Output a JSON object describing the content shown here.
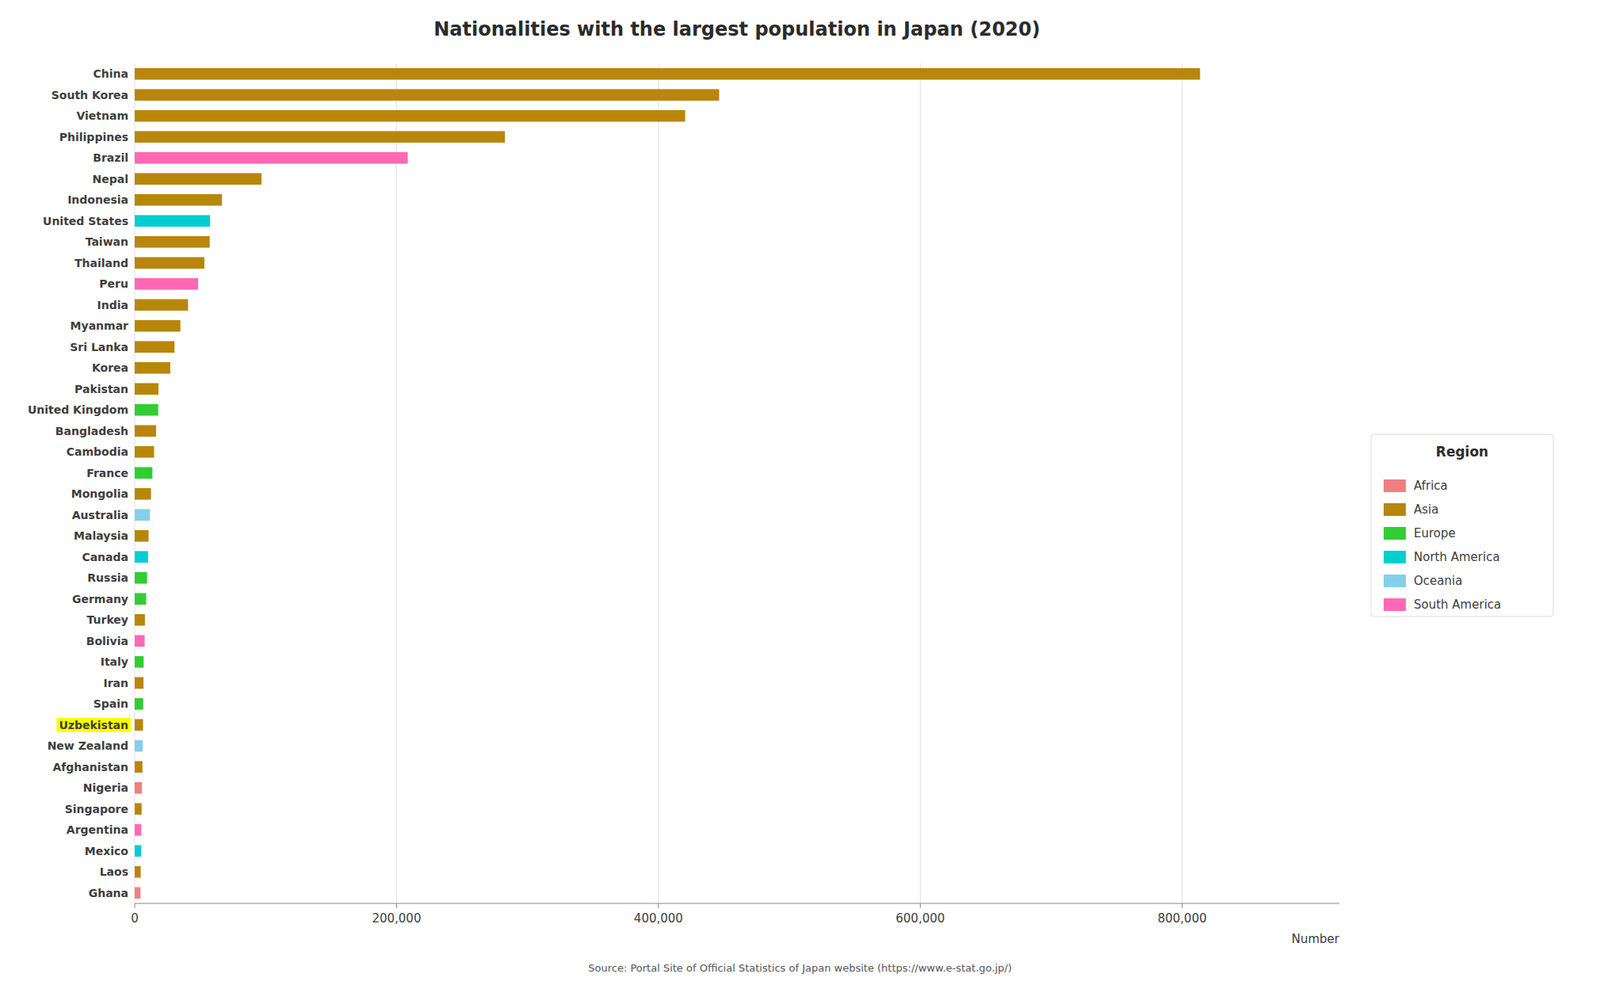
{
  "chart_data": {
    "type": "bar",
    "orientation": "horizontal",
    "title": "Nationalities with the largest population in Japan (2020)",
    "xlabel": "Number",
    "annotation": "Source: Portal Site of Official Statistics of Japan website (https://www.e-stat.go.jp/)",
    "categories": [
      "China",
      "South Korea",
      "Vietnam",
      "Philippines",
      "Brazil",
      "Nepal",
      "Indonesia",
      "United States",
      "Taiwan",
      "Thailand",
      "Peru",
      "India",
      "Myanmar",
      "Sri Lanka",
      "Korea",
      "Pakistan",
      "United Kingdom",
      "Bangladesh",
      "Cambodia",
      "France",
      "Mongolia",
      "Australia",
      "Malaysia",
      "Canada",
      "Russia",
      "Germany",
      "Turkey",
      "Bolivia",
      "Italy",
      "Iran",
      "Spain",
      "Uzbekistan",
      "New Zealand",
      "Afghanistan",
      "Nigeria",
      "Singapore",
      "Argentina",
      "Mexico",
      "Laos",
      "Ghana"
    ],
    "series": [
      {
        "name": "Africa",
        "color": "#F08080",
        "values": [
          null,
          null,
          null,
          null,
          null,
          null,
          null,
          null,
          null,
          null,
          null,
          null,
          null,
          null,
          null,
          null,
          null,
          null,
          null,
          null,
          null,
          null,
          null,
          null,
          null,
          null,
          null,
          null,
          null,
          null,
          null,
          null,
          null,
          null,
          5500,
          null,
          null,
          null,
          null,
          4400
        ]
      },
      {
        "name": "Asia",
        "color": "#B8860B",
        "values": [
          813675,
          446364,
          420415,
          282798,
          null,
          96824,
          66586,
          null,
          57292,
          53205,
          null,
          40763,
          34895,
          30380,
          27143,
          18131,
          null,
          16300,
          14800,
          null,
          12420,
          null,
          10600,
          null,
          null,
          null,
          7800,
          null,
          null,
          6700,
          null,
          6350,
          null,
          5900,
          null,
          5300,
          null,
          null,
          4600,
          null
        ]
      },
      {
        "name": "Europe",
        "color": "#32CD32",
        "values": [
          null,
          null,
          null,
          null,
          null,
          null,
          null,
          null,
          null,
          null,
          null,
          null,
          null,
          null,
          null,
          null,
          17943,
          null,
          null,
          13500,
          null,
          null,
          null,
          null,
          9480,
          8780,
          null,
          null,
          6800,
          null,
          6500,
          null,
          null,
          null,
          null,
          null,
          null,
          null,
          null,
          null
        ]
      },
      {
        "name": "North America",
        "color": "#00CED1",
        "values": [
          null,
          null,
          null,
          null,
          null,
          null,
          null,
          57520,
          null,
          null,
          null,
          null,
          null,
          null,
          null,
          null,
          null,
          null,
          null,
          null,
          null,
          null,
          null,
          10200,
          null,
          null,
          null,
          null,
          null,
          null,
          null,
          null,
          null,
          null,
          null,
          null,
          null,
          4900,
          null,
          null
        ]
      },
      {
        "name": "Oceania",
        "color": "#87CEEB",
        "values": [
          null,
          null,
          null,
          null,
          null,
          null,
          null,
          null,
          null,
          null,
          null,
          null,
          null,
          null,
          null,
          null,
          null,
          null,
          null,
          null,
          null,
          11585,
          null,
          null,
          null,
          null,
          null,
          null,
          null,
          null,
          null,
          null,
          6200,
          null,
          null,
          null,
          null,
          null,
          null,
          null
        ]
      },
      {
        "name": "South America",
        "color": "#FF69B4",
        "values": [
          null,
          null,
          null,
          null,
          208538,
          null,
          null,
          null,
          null,
          null,
          48419,
          null,
          null,
          null,
          null,
          null,
          null,
          null,
          null,
          null,
          null,
          null,
          null,
          null,
          null,
          null,
          null,
          7600,
          null,
          null,
          null,
          null,
          null,
          null,
          null,
          null,
          5100,
          null,
          null,
          null
        ]
      }
    ],
    "legend": "right",
    "legend_title": "Region",
    "highlight": {
      "category": "Uzbekistan",
      "color": "#FFFF00"
    },
    "xlim": [
      0,
      920000
    ],
    "xticks": [
      0,
      {
        "value": 200000,
        "label": "200,000"
      },
      {
        "value": 400000,
        "label": "400,000"
      },
      {
        "value": 600000,
        "label": "600,000"
      },
      {
        "value": 800000,
        "label": "800,000"
      }
    ],
    "grid": true
  }
}
